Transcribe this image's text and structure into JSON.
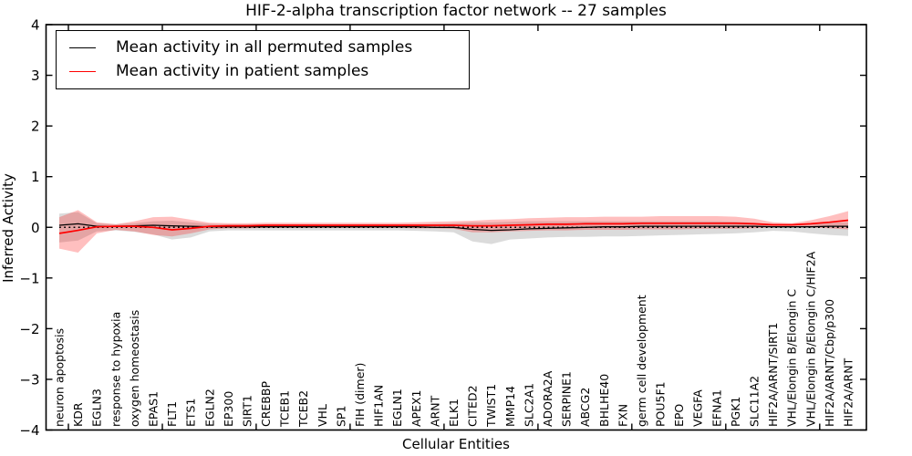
{
  "chart_data": {
    "type": "line",
    "title": "HIF-2-alpha transcription factor network -- 27 samples",
    "xlabel": "Cellular Entities",
    "ylabel": "Inferred Activity",
    "ylim": [
      -4,
      4
    ],
    "yticks": [
      4,
      3,
      2,
      1,
      0,
      -1,
      -2,
      -3,
      -4
    ],
    "grid": false,
    "legend_position": "upper left",
    "zero_line": {
      "value": 0,
      "style": "dotted",
      "color": "#000000"
    },
    "categories": [
      "neuron apoptosis",
      "KDR",
      "EGLN3",
      "response to hypoxia",
      "oxygen homeostasis",
      "EPAS1",
      "FLT1",
      "ETS1",
      "EGLN2",
      "EP300",
      "SIRT1",
      "CREBBP",
      "TCEB1",
      "TCEB2",
      "VHL",
      "SP1",
      "FIH (dimer)",
      "HIF1AN",
      "EGLN1",
      "APEX1",
      "ARNT",
      "ELK1",
      "CITED2",
      "TWIST1",
      "MMP14",
      "SLC2A1",
      "ADORA2A",
      "SERPINE1",
      "ABCG2",
      "BHLHE40",
      "FXN",
      "germ cell development",
      "POU5F1",
      "EPO",
      "VEGFA",
      "EFNA1",
      "PGK1",
      "SLC11A2",
      "HIF2A/ARNT/SIRT1",
      "VHL/Elongin B/Elongin C",
      "VHL/Elongin B/Elongin C/HIF2A",
      "HIF2A/ARNT/Cbp/p300",
      "HIF2A/ARNT"
    ],
    "series": [
      {
        "name": "Mean activity in all permuted samples",
        "color": "#000000",
        "band_color": "rgba(0,0,0,0.14)",
        "values": [
          0.04,
          0.07,
          0.02,
          0.02,
          0.03,
          0.04,
          0.03,
          0.02,
          0.01,
          0.01,
          0.01,
          0.01,
          0.01,
          0.01,
          0.01,
          0.01,
          0.01,
          0.01,
          0.01,
          0.01,
          0.0,
          0.0,
          -0.04,
          -0.06,
          -0.05,
          -0.03,
          -0.02,
          -0.01,
          0.0,
          0.01,
          0.01,
          0.02,
          0.02,
          0.02,
          0.02,
          0.02,
          0.02,
          0.02,
          0.01,
          0.01,
          0.01,
          0.02,
          0.02
        ],
        "band_upper": [
          0.27,
          0.3,
          0.08,
          0.06,
          0.08,
          0.12,
          0.13,
          0.1,
          0.07,
          0.06,
          0.06,
          0.06,
          0.06,
          0.06,
          0.06,
          0.06,
          0.06,
          0.06,
          0.06,
          0.06,
          0.07,
          0.08,
          0.1,
          0.1,
          0.11,
          0.12,
          0.12,
          0.12,
          0.12,
          0.12,
          0.12,
          0.12,
          0.12,
          0.12,
          0.12,
          0.12,
          0.11,
          0.09,
          0.06,
          0.05,
          0.07,
          0.09,
          0.1
        ],
        "band_lower": [
          -0.3,
          -0.26,
          -0.08,
          -0.06,
          -0.09,
          -0.14,
          -0.24,
          -0.2,
          -0.08,
          -0.06,
          -0.06,
          -0.06,
          -0.06,
          -0.06,
          -0.06,
          -0.06,
          -0.06,
          -0.06,
          -0.06,
          -0.07,
          -0.08,
          -0.1,
          -0.28,
          -0.33,
          -0.24,
          -0.22,
          -0.2,
          -0.19,
          -0.19,
          -0.18,
          -0.18,
          -0.17,
          -0.16,
          -0.15,
          -0.14,
          -0.13,
          -0.12,
          -0.1,
          -0.07,
          -0.08,
          -0.12,
          -0.15,
          -0.17
        ]
      },
      {
        "name": "Mean activity in patient samples",
        "color": "#ff0000",
        "band_color": "rgba(255,0,0,0.25)",
        "values": [
          -0.12,
          -0.06,
          0.01,
          0.02,
          0.02,
          0.0,
          -0.05,
          -0.02,
          0.02,
          0.03,
          0.03,
          0.04,
          0.04,
          0.04,
          0.04,
          0.04,
          0.04,
          0.04,
          0.04,
          0.04,
          0.04,
          0.04,
          0.03,
          0.03,
          0.04,
          0.05,
          0.06,
          0.06,
          0.07,
          0.07,
          0.07,
          0.08,
          0.08,
          0.08,
          0.08,
          0.08,
          0.08,
          0.07,
          0.05,
          0.05,
          0.07,
          0.1,
          0.14
        ],
        "band_upper": [
          0.2,
          0.34,
          0.1,
          0.06,
          0.12,
          0.2,
          0.21,
          0.15,
          0.09,
          0.08,
          0.08,
          0.09,
          0.09,
          0.09,
          0.09,
          0.09,
          0.09,
          0.09,
          0.09,
          0.1,
          0.11,
          0.12,
          0.13,
          0.15,
          0.16,
          0.18,
          0.19,
          0.2,
          0.2,
          0.21,
          0.21,
          0.21,
          0.22,
          0.22,
          0.22,
          0.22,
          0.21,
          0.17,
          0.1,
          0.08,
          0.14,
          0.22,
          0.32
        ],
        "band_lower": [
          -0.42,
          -0.5,
          -0.12,
          -0.05,
          -0.08,
          -0.15,
          -0.18,
          -0.12,
          -0.04,
          -0.02,
          -0.02,
          -0.01,
          -0.01,
          -0.01,
          -0.01,
          -0.01,
          -0.01,
          -0.01,
          -0.01,
          -0.02,
          -0.02,
          -0.03,
          -0.1,
          -0.1,
          -0.08,
          -0.07,
          -0.06,
          -0.06,
          -0.05,
          -0.05,
          -0.05,
          -0.04,
          -0.04,
          -0.04,
          -0.03,
          -0.03,
          -0.03,
          -0.02,
          0.0,
          0.01,
          0.0,
          -0.02,
          -0.04
        ]
      }
    ]
  }
}
